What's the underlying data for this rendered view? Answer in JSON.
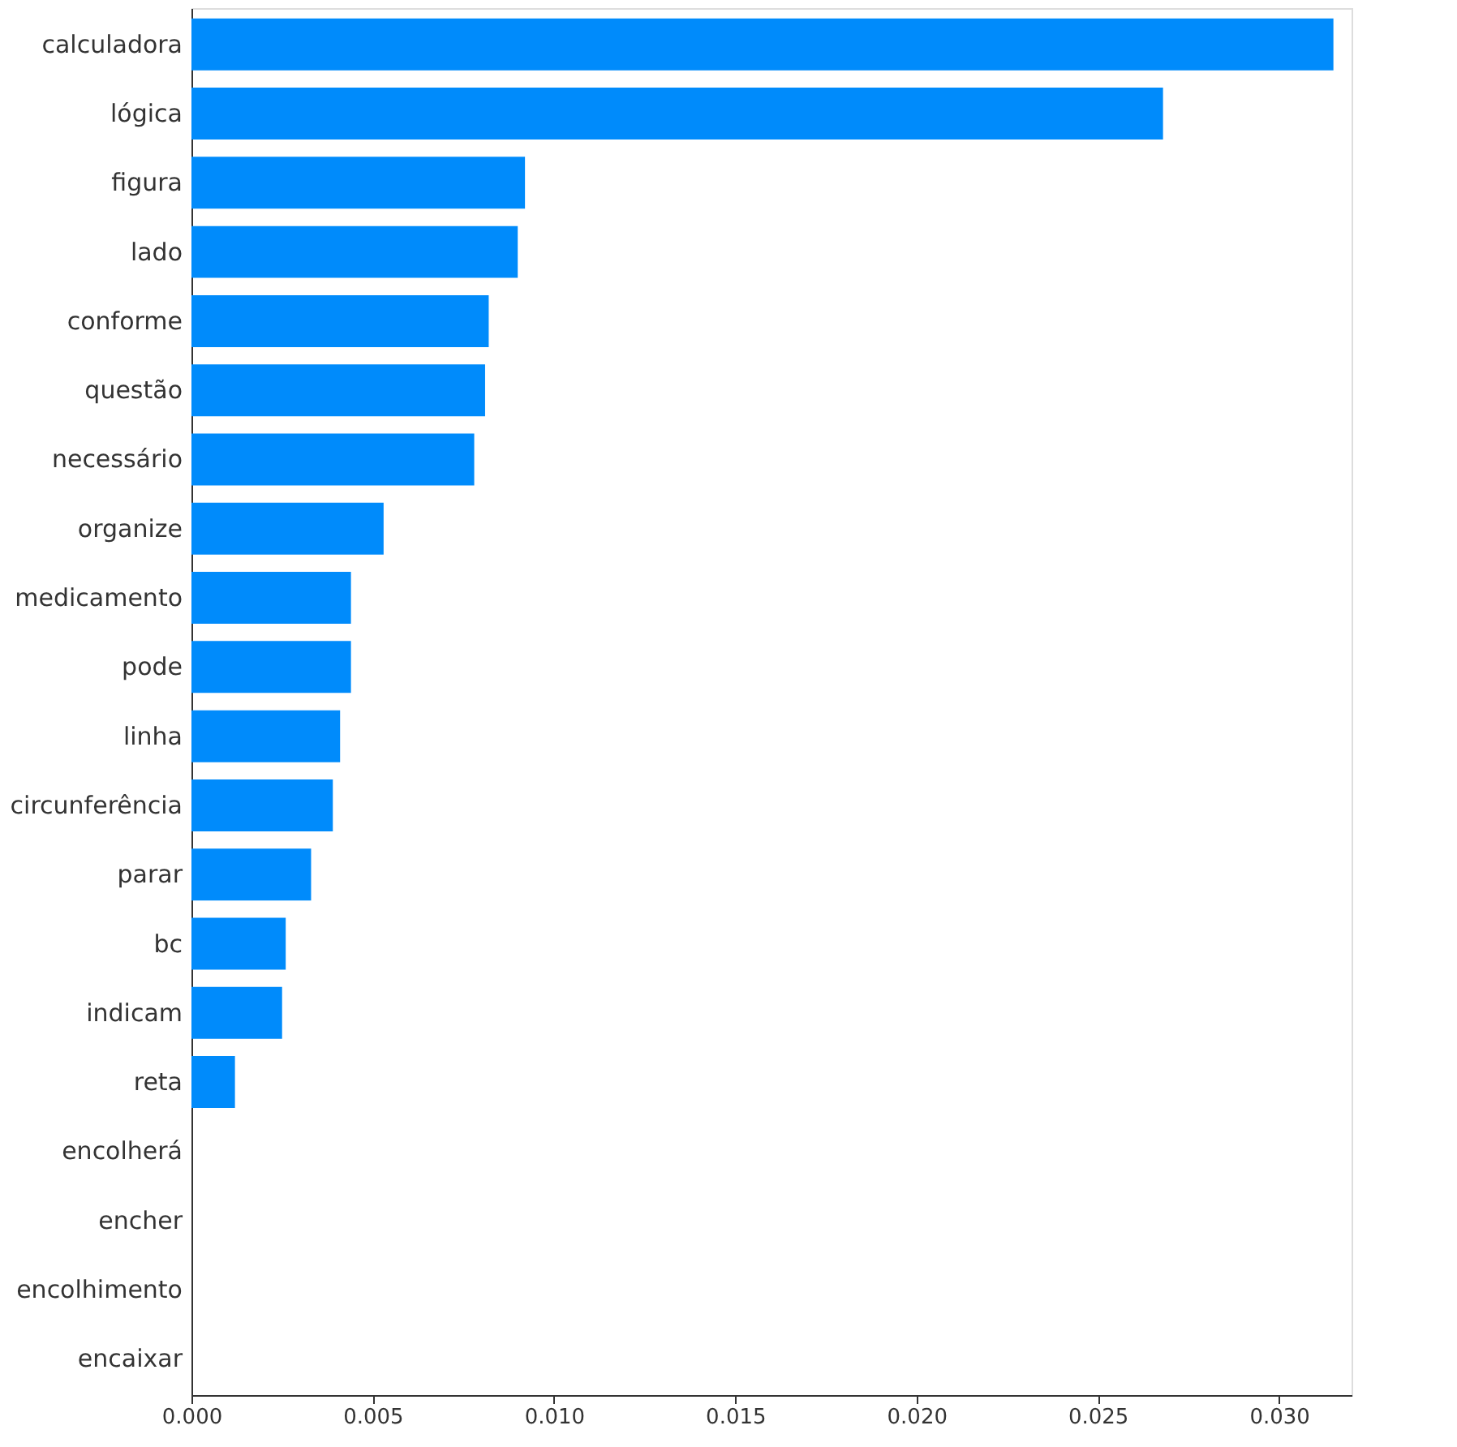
{
  "chart_data": {
    "type": "bar",
    "orientation": "horizontal",
    "categories": [
      "calculadora",
      "lógica",
      "figura",
      "lado",
      "conforme",
      "questão",
      "necessário",
      "organize",
      "medicamento",
      "pode",
      "linha",
      "circunferência",
      "parar",
      "bc",
      "indicam",
      "reta",
      "encolherá",
      "encher",
      "encolhimento",
      "encaixar"
    ],
    "values": [
      0.0315,
      0.0268,
      0.0092,
      0.009,
      0.0082,
      0.0081,
      0.0078,
      0.0053,
      0.0044,
      0.0044,
      0.0041,
      0.0039,
      0.0033,
      0.0026,
      0.0025,
      0.0012,
      0,
      0,
      0,
      0
    ],
    "color": "#008bfb",
    "xlim": [
      0,
      0.032
    ],
    "xticks": [
      {
        "value": 0,
        "label": "0.000"
      },
      {
        "value": 0.005,
        "label": "0.005"
      },
      {
        "value": 0.01,
        "label": "0.010"
      },
      {
        "value": 0.015,
        "label": "0.015"
      },
      {
        "value": 0.02,
        "label": "0.020"
      },
      {
        "value": 0.025,
        "label": "0.025"
      },
      {
        "value": 0.03,
        "label": "0.030"
      }
    ],
    "grid": false
  }
}
